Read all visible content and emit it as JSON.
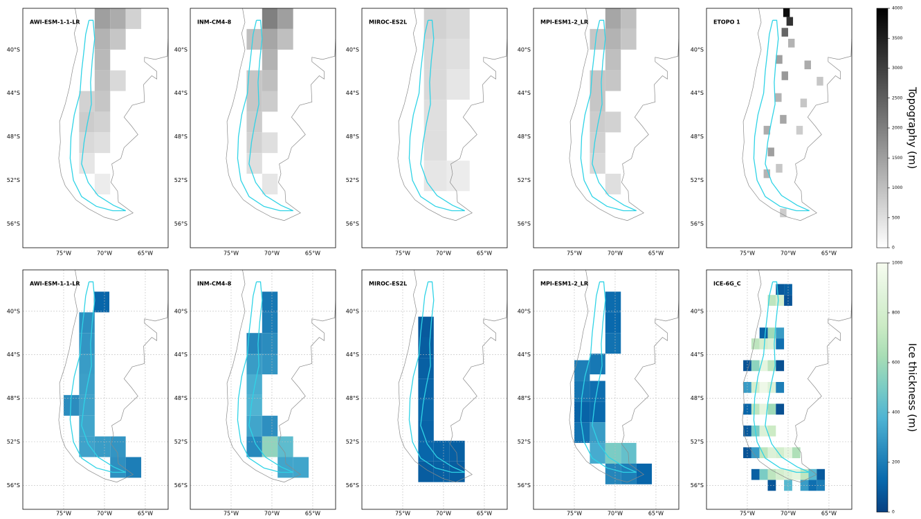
{
  "map": {
    "lon_lim": [
      -80,
      -62.2
    ],
    "lat_lim": [
      -36.2,
      -58.2
    ],
    "lon_ticks": [
      {
        "value": -75,
        "label": "75°W"
      },
      {
        "value": -70,
        "label": "70°W"
      },
      {
        "value": -65,
        "label": "65°W"
      }
    ],
    "lat_ticks": [
      {
        "value": -40,
        "label": "40°S"
      },
      {
        "value": -44,
        "label": "44°S"
      },
      {
        "value": -48,
        "label": "48°S"
      },
      {
        "value": -52,
        "label": "52°S"
      },
      {
        "value": -56,
        "label": "56°S"
      }
    ]
  },
  "rows": [
    {
      "grid": false,
      "colorbar": {
        "label": "Topography (m)",
        "lim": [
          0,
          4000
        ],
        "ticks": [
          0,
          500,
          1000,
          1500,
          2000,
          2500,
          3000,
          3500,
          4000
        ],
        "colors": [
          "#ffffff",
          "#000000"
        ]
      },
      "panels": [
        {
          "title": "AWI-ESM-1-1-LR",
          "cell_size": 1.9,
          "cells": [
            [
              -71.2,
              -36.2,
              1500
            ],
            [
              -69.3,
              -36.2,
              1300
            ],
            [
              -67.4,
              -36.2,
              700
            ],
            [
              -71.2,
              -38.1,
              1200
            ],
            [
              -69.3,
              -38.1,
              900
            ],
            [
              -71.2,
              -40,
              1100
            ],
            [
              -71.2,
              -41.9,
              1000
            ],
            [
              -69.3,
              -41.9,
              600
            ],
            [
              -73.1,
              -43.8,
              700
            ],
            [
              -71.2,
              -43.8,
              900
            ],
            [
              -73.1,
              -45.7,
              800
            ],
            [
              -71.2,
              -45.7,
              700
            ],
            [
              -73.1,
              -47.6,
              600
            ],
            [
              -71.2,
              -47.6,
              500
            ],
            [
              -73.1,
              -49.5,
              400
            ],
            [
              -71.2,
              -51.4,
              300
            ]
          ]
        },
        {
          "title": "INM-CM4-8",
          "cell_size": 1.9,
          "cells": [
            [
              -71.2,
              -36.2,
              2000
            ],
            [
              -69.3,
              -36.2,
              1500
            ],
            [
              -73.1,
              -38.1,
              1000
            ],
            [
              -71.2,
              -38.1,
              1400
            ],
            [
              -69.3,
              -38.1,
              1000
            ],
            [
              -71.2,
              -40,
              1200
            ],
            [
              -73.1,
              -41.9,
              900
            ],
            [
              -71.2,
              -41.9,
              1000
            ],
            [
              -73.1,
              -43.8,
              900
            ],
            [
              -71.2,
              -43.8,
              800
            ],
            [
              -73.1,
              -45.7,
              800
            ],
            [
              -73.1,
              -47.6,
              700
            ],
            [
              -71.2,
              -47.6,
              500
            ],
            [
              -73.1,
              -49.5,
              500
            ],
            [
              -71.2,
              -51.4,
              400
            ]
          ]
        },
        {
          "title": "MIROC-ES2L",
          "cell_size": 2.8,
          "cells": [
            [
              -72.4,
              -36.2,
              700
            ],
            [
              -69.6,
              -36.2,
              600
            ],
            [
              -72.4,
              -39,
              600
            ],
            [
              -69.6,
              -39,
              500
            ],
            [
              -72.4,
              -41.8,
              600
            ],
            [
              -69.6,
              -41.8,
              400
            ],
            [
              -72.4,
              -44.6,
              500
            ],
            [
              -72.4,
              -47.4,
              500
            ],
            [
              -72.4,
              -50.2,
              400
            ],
            [
              -69.6,
              -50.2,
              300
            ]
          ]
        },
        {
          "title": "MPI-ESM1-2_LR",
          "cell_size": 1.9,
          "cells": [
            [
              -71.2,
              -36.2,
              1400
            ],
            [
              -69.3,
              -36.2,
              1000
            ],
            [
              -73.1,
              -38.1,
              900
            ],
            [
              -71.2,
              -38.1,
              1200
            ],
            [
              -69.3,
              -38.1,
              900
            ],
            [
              -71.2,
              -40,
              1000
            ],
            [
              -73.1,
              -41.9,
              900
            ],
            [
              -71.2,
              -41.9,
              900
            ],
            [
              -73.1,
              -43.8,
              900
            ],
            [
              -73.1,
              -45.7,
              800
            ],
            [
              -71.2,
              -45.7,
              700
            ],
            [
              -73.1,
              -47.6,
              700
            ],
            [
              -73.1,
              -49.5,
              600
            ],
            [
              -71.2,
              -51.4,
              500
            ]
          ]
        },
        {
          "title": "ETOPO 1",
          "cell_size": 0.8,
          "cells": [
            [
              -70.6,
              -36.2,
              3800
            ],
            [
              -70.2,
              -37,
              3200
            ],
            [
              -70.8,
              -38,
              2400
            ],
            [
              -70,
              -39,
              1200
            ],
            [
              -71.5,
              -40.5,
              1500
            ],
            [
              -68,
              -41,
              1300
            ],
            [
              -70.8,
              -42,
              1600
            ],
            [
              -66.5,
              -42.5,
              900
            ],
            [
              -71.6,
              -44,
              1200
            ],
            [
              -68.5,
              -44.5,
              900
            ],
            [
              -71,
              -46,
              1400
            ],
            [
              -73,
              -47,
              1300
            ],
            [
              -69,
              -47,
              800
            ],
            [
              -72.5,
              -49,
              1500
            ],
            [
              -71.5,
              -50.5,
              900
            ],
            [
              -73,
              -51,
              1200
            ],
            [
              -71,
              -54.6,
              800
            ]
          ]
        }
      ]
    },
    {
      "grid": true,
      "colorbar": {
        "label": "Ice thickness (m)",
        "lim": [
          0,
          1000
        ],
        "ticks": [
          0,
          200,
          400,
          600,
          800,
          1000
        ],
        "colors": [
          "#084081",
          "#0868ac",
          "#2b8cbe",
          "#4eb3d3",
          "#7bccc4",
          "#a8ddb5",
          "#ccebc5",
          "#e0f3db",
          "#f7fcf0"
        ]
      },
      "panels": [
        {
          "title": "AWI-ESM-1-1-LR",
          "cell_size": 1.9,
          "cells": [
            [
              -71.3,
              -38.2,
              120
            ],
            [
              -73.1,
              -40.1,
              260
            ],
            [
              -73.1,
              -42,
              280
            ],
            [
              -73.1,
              -43.9,
              300
            ],
            [
              -73.1,
              -45.8,
              310
            ],
            [
              -73.1,
              -47.7,
              320
            ],
            [
              -75,
              -47.7,
              250
            ],
            [
              -73.1,
              -49.6,
              330
            ],
            [
              -73.1,
              -51.5,
              320
            ],
            [
              -71.2,
              -51.5,
              300
            ],
            [
              -69.3,
              -51.5,
              280
            ],
            [
              -69.3,
              -53.4,
              260
            ],
            [
              -67.4,
              -53.4,
              200
            ]
          ]
        },
        {
          "title": "INM-CM4-8",
          "cell_size": 1.9,
          "cells": [
            [
              -71.2,
              -38.2,
              180
            ],
            [
              -71.2,
              -40.1,
              200
            ],
            [
              -73.1,
              -42,
              230
            ],
            [
              -71.2,
              -42,
              250
            ],
            [
              -73.1,
              -43.9,
              300
            ],
            [
              -71.2,
              -43.9,
              280
            ],
            [
              -73.1,
              -45.8,
              360
            ],
            [
              -73.1,
              -47.7,
              380
            ],
            [
              -73.1,
              -49.6,
              330
            ],
            [
              -71.2,
              -49.6,
              260
            ],
            [
              -73.1,
              -51.5,
              240
            ],
            [
              -71.2,
              -51.5,
              560
            ],
            [
              -69.3,
              -51.5,
              420
            ],
            [
              -69.3,
              -53.4,
              330
            ],
            [
              -67.4,
              -53.4,
              330
            ]
          ]
        },
        {
          "title": "MIROC-ES2L",
          "cell_size": 1.9,
          "cells": [
            [
              -73.1,
              -40.5,
              80
            ],
            [
              -73.1,
              -42.4,
              90
            ],
            [
              -73.1,
              -44.3,
              100
            ],
            [
              -73.1,
              -46.2,
              110
            ],
            [
              -73.1,
              -48.1,
              120
            ],
            [
              -73.1,
              -50,
              110
            ],
            [
              -73.1,
              -51.9,
              120
            ],
            [
              -71.2,
              -51.9,
              110
            ],
            [
              -69.3,
              -51.9,
              100
            ],
            [
              -73.1,
              -53.8,
              90
            ],
            [
              -71.2,
              -53.8,
              100
            ],
            [
              -69.3,
              -53.8,
              90
            ]
          ]
        },
        {
          "title": "MPI-ESM1-2_LR",
          "cell_size": 1.9,
          "cells": [
            [
              -71.2,
              -38.2,
              140
            ],
            [
              -71.2,
              -40.1,
              130
            ],
            [
              -71.2,
              -42,
              160
            ],
            [
              -73.1,
              -43.9,
              180
            ],
            [
              -75,
              -44.5,
              200
            ],
            [
              -73.1,
              -46.4,
              150
            ],
            [
              -75,
              -46.4,
              170
            ],
            [
              -75,
              -48.3,
              110
            ],
            [
              -73.1,
              -48.3,
              130
            ],
            [
              -75,
              -50.2,
              160
            ],
            [
              -73.1,
              -50.2,
              300
            ],
            [
              -73.1,
              -52.1,
              350
            ],
            [
              -71.2,
              -52.1,
              500
            ],
            [
              -69.3,
              -52.1,
              440
            ],
            [
              -71.2,
              -54,
              230
            ],
            [
              -69.3,
              -54,
              200
            ],
            [
              -67.4,
              -54,
              120
            ]
          ]
        },
        {
          "title": "ICE-6G_C",
          "cell_size": 1,
          "cells": [
            [
              -71.5,
              -37.5,
              80
            ],
            [
              -70.5,
              -37.5,
              100
            ],
            [
              -72.5,
              -38.5,
              700
            ],
            [
              -71.5,
              -38.5,
              800
            ],
            [
              -70.5,
              -38.5,
              60
            ],
            [
              -73.5,
              -41.5,
              100
            ],
            [
              -72.5,
              -41.5,
              600
            ],
            [
              -71.5,
              -41.5,
              300
            ],
            [
              -74.5,
              -42.5,
              700
            ],
            [
              -73.5,
              -42.5,
              800
            ],
            [
              -72.5,
              -42.5,
              850
            ],
            [
              -71.5,
              -42.5,
              150
            ],
            [
              -75.5,
              -44.5,
              60
            ],
            [
              -74.5,
              -44.5,
              550
            ],
            [
              -73.5,
              -44.5,
              900
            ],
            [
              -72.5,
              -44.5,
              700
            ],
            [
              -71.5,
              -44.5,
              50
            ],
            [
              -75.5,
              -46.5,
              300
            ],
            [
              -74.5,
              -46.5,
              800
            ],
            [
              -73.5,
              -46.5,
              950
            ],
            [
              -72.5,
              -46.5,
              850
            ],
            [
              -71.5,
              -46.5,
              200
            ],
            [
              -75.5,
              -48.5,
              120
            ],
            [
              -74.5,
              -48.5,
              700
            ],
            [
              -73.5,
              -48.5,
              900
            ],
            [
              -72.5,
              -48.5,
              600
            ],
            [
              -71.5,
              -48.5,
              50
            ],
            [
              -75.5,
              -50.5,
              80
            ],
            [
              -74.5,
              -50.5,
              500
            ],
            [
              -73.5,
              -50.5,
              850
            ],
            [
              -72.5,
              -50.5,
              750
            ],
            [
              -75.5,
              -52.5,
              60
            ],
            [
              -74.5,
              -52.5,
              300
            ],
            [
              -73.5,
              -52.5,
              700
            ],
            [
              -72.5,
              -52.5,
              850
            ],
            [
              -71.5,
              -52.5,
              800
            ],
            [
              -70.5,
              -52.5,
              900
            ],
            [
              -69.5,
              -52.5,
              650
            ],
            [
              -74.5,
              -54.5,
              100
            ],
            [
              -73.5,
              -54.5,
              500
            ],
            [
              -72.5,
              -54.5,
              700
            ],
            [
              -71.5,
              -54.5,
              800
            ],
            [
              -70.5,
              -54.5,
              850
            ],
            [
              -69.5,
              -54.5,
              900
            ],
            [
              -68.5,
              -54.5,
              700
            ],
            [
              -67.5,
              -54.5,
              400
            ],
            [
              -66.5,
              -54.5,
              80
            ],
            [
              -72.5,
              -55.5,
              70
            ],
            [
              -70.5,
              -55.5,
              400
            ],
            [
              -68.5,
              -55.5,
              300
            ],
            [
              -67.5,
              -55.5,
              150
            ],
            [
              -66.5,
              -55.5,
              200
            ]
          ]
        }
      ]
    }
  ]
}
